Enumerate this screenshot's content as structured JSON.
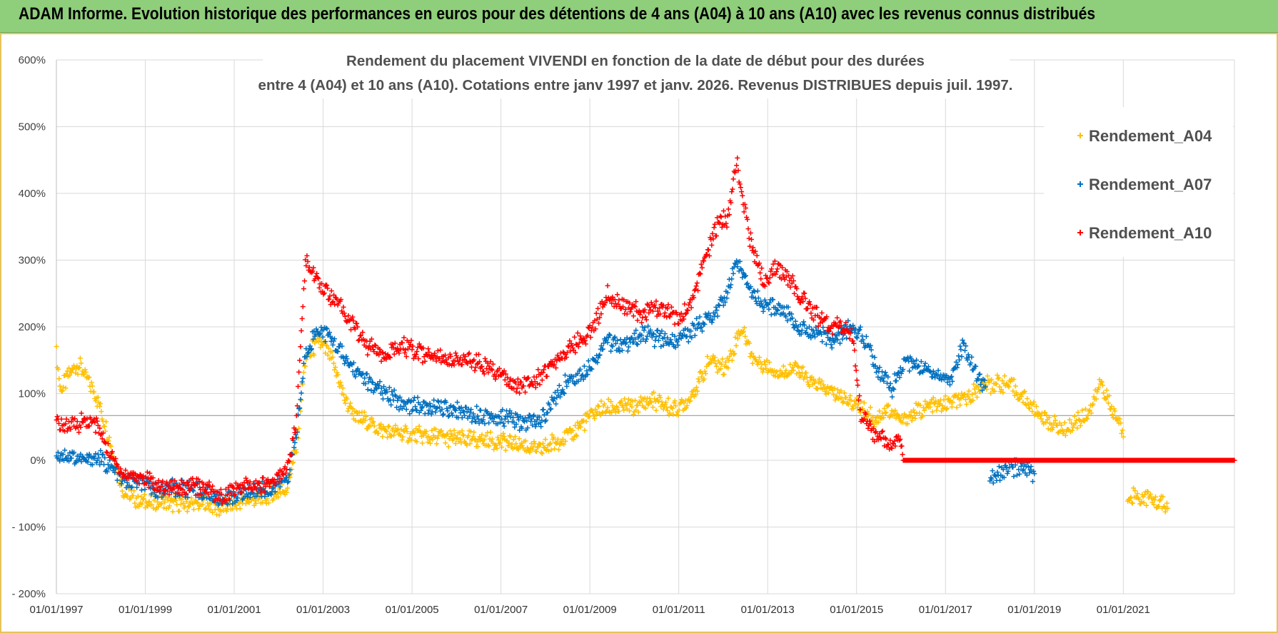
{
  "banner": {
    "title": "ADAM Informe. Evolution historique des performances en euros pour des détentions de 4 ans (A04) à 10 ans (A10) avec les revenus connus distribués"
  },
  "chart_data": {
    "type": "scatter",
    "title_line1": "Rendement du placement VIVENDI en fonction de la date de début pour des durées",
    "title_line2": "entre 4 (A04) et 10 ans (A10).  Cotations entre janv 1997 et janv. 2026. Revenus DISTRIBUES depuis juil. 1997.",
    "xlabel": "",
    "ylabel": "",
    "y_ticks": [
      "600%",
      "500%",
      "400%",
      "300%",
      "200%",
      "100%",
      "0%",
      "- 100%",
      "- 200%"
    ],
    "ylim": [
      -200,
      600
    ],
    "y_reference_line": 67,
    "x_ticks": [
      "01/01/1997",
      "01/01/1999",
      "01/01/2001",
      "01/01/2003",
      "01/01/2005",
      "01/01/2007",
      "01/01/2009",
      "01/01/2011",
      "01/01/2013",
      "01/01/2015",
      "01/01/2017",
      "01/01/2019",
      "01/01/2021"
    ],
    "xlim": [
      1997.0,
      2023.5
    ],
    "grid": true,
    "legend_position": "top-right",
    "marker": "+",
    "series": [
      {
        "name": "Rendement_A04",
        "color": "#ffc000",
        "points": [
          [
            1997.0,
            160
          ],
          [
            1997.1,
            105
          ],
          [
            1997.3,
            130
          ],
          [
            1997.5,
            145
          ],
          [
            1997.7,
            120
          ],
          [
            1997.9,
            95
          ],
          [
            1998.1,
            55
          ],
          [
            1998.3,
            0
          ],
          [
            1998.5,
            -45
          ],
          [
            1998.8,
            -60
          ],
          [
            1999.2,
            -63
          ],
          [
            1999.6,
            -65
          ],
          [
            2000.0,
            -66
          ],
          [
            2000.4,
            -65
          ],
          [
            2000.7,
            -73
          ],
          [
            2001.0,
            -66
          ],
          [
            2001.3,
            -60
          ],
          [
            2001.6,
            -57
          ],
          [
            2001.9,
            -50
          ],
          [
            2002.2,
            -40
          ],
          [
            2002.4,
            20
          ],
          [
            2002.6,
            150
          ],
          [
            2002.9,
            180
          ],
          [
            2003.2,
            150
          ],
          [
            2003.5,
            90
          ],
          [
            2003.8,
            60
          ],
          [
            2004.0,
            60
          ],
          [
            2004.3,
            45
          ],
          [
            2004.7,
            40
          ],
          [
            2005.0,
            38
          ],
          [
            2005.5,
            35
          ],
          [
            2006.0,
            33
          ],
          [
            2006.5,
            30
          ],
          [
            2007.0,
            28
          ],
          [
            2007.5,
            22
          ],
          [
            2007.8,
            15
          ],
          [
            2008.0,
            20
          ],
          [
            2008.3,
            30
          ],
          [
            2008.6,
            40
          ],
          [
            2008.9,
            60
          ],
          [
            2009.2,
            75
          ],
          [
            2009.6,
            80
          ],
          [
            2010.0,
            80
          ],
          [
            2010.4,
            90
          ],
          [
            2010.8,
            80
          ],
          [
            2011.1,
            80
          ],
          [
            2011.4,
            110
          ],
          [
            2011.7,
            150
          ],
          [
            2012.0,
            140
          ],
          [
            2012.2,
            160
          ],
          [
            2012.4,
            200
          ],
          [
            2012.7,
            150
          ],
          [
            2013.0,
            140
          ],
          [
            2013.3,
            130
          ],
          [
            2013.6,
            140
          ],
          [
            2013.9,
            120
          ],
          [
            2014.2,
            110
          ],
          [
            2014.5,
            100
          ],
          [
            2014.8,
            90
          ],
          [
            2015.1,
            80
          ],
          [
            2015.4,
            60
          ],
          [
            2015.7,
            75
          ],
          [
            2016.0,
            60
          ],
          [
            2016.3,
            70
          ],
          [
            2016.6,
            80
          ],
          [
            2017.0,
            85
          ],
          [
            2017.4,
            90
          ],
          [
            2017.8,
            110
          ],
          [
            2018.2,
            115
          ],
          [
            2018.5,
            110
          ],
          [
            2018.8,
            90
          ],
          [
            2019.1,
            70
          ],
          [
            2019.4,
            55
          ],
          [
            2019.7,
            45
          ],
          [
            2020.0,
            60
          ],
          [
            2020.3,
            80
          ],
          [
            2020.5,
            120
          ],
          [
            2020.7,
            80
          ],
          [
            2020.9,
            60
          ],
          [
            2021.0,
            35
          ],
          [
            2021.1,
            -52
          ],
          [
            2021.5,
            -55
          ],
          [
            2021.8,
            -65
          ],
          [
            2022.0,
            -72
          ]
        ]
      },
      {
        "name": "Rendement_A07",
        "color": "#0070c0",
        "points": [
          [
            1997.0,
            10
          ],
          [
            1997.3,
            5
          ],
          [
            1997.6,
            0
          ],
          [
            1997.9,
            5
          ],
          [
            1998.2,
            -10
          ],
          [
            1998.5,
            -30
          ],
          [
            1998.9,
            -35
          ],
          [
            1999.3,
            -45
          ],
          [
            1999.7,
            -42
          ],
          [
            2000.1,
            -45
          ],
          [
            2000.4,
            -50
          ],
          [
            2000.7,
            -60
          ],
          [
            2001.0,
            -52
          ],
          [
            2001.3,
            -48
          ],
          [
            2001.6,
            -45
          ],
          [
            2001.9,
            -40
          ],
          [
            2002.2,
            -25
          ],
          [
            2002.4,
            40
          ],
          [
            2002.6,
            160
          ],
          [
            2002.9,
            200
          ],
          [
            2003.2,
            180
          ],
          [
            2003.5,
            150
          ],
          [
            2003.8,
            130
          ],
          [
            2004.1,
            110
          ],
          [
            2004.4,
            100
          ],
          [
            2004.8,
            85
          ],
          [
            2005.2,
            80
          ],
          [
            2005.6,
            78
          ],
          [
            2006.0,
            75
          ],
          [
            2006.4,
            70
          ],
          [
            2006.8,
            65
          ],
          [
            2007.2,
            65
          ],
          [
            2007.6,
            55
          ],
          [
            2007.9,
            60
          ],
          [
            2008.2,
            90
          ],
          [
            2008.5,
            120
          ],
          [
            2008.8,
            130
          ],
          [
            2009.1,
            150
          ],
          [
            2009.4,
            180
          ],
          [
            2009.8,
            170
          ],
          [
            2010.2,
            190
          ],
          [
            2010.6,
            180
          ],
          [
            2011.0,
            180
          ],
          [
            2011.4,
            200
          ],
          [
            2011.8,
            220
          ],
          [
            2012.1,
            250
          ],
          [
            2012.3,
            300
          ],
          [
            2012.6,
            260
          ],
          [
            2012.9,
            230
          ],
          [
            2013.3,
            230
          ],
          [
            2013.7,
            200
          ],
          [
            2014.1,
            190
          ],
          [
            2014.5,
            180
          ],
          [
            2014.9,
            200
          ],
          [
            2015.2,
            180
          ],
          [
            2015.5,
            130
          ],
          [
            2015.8,
            110
          ],
          [
            2016.1,
            150
          ],
          [
            2016.4,
            140
          ],
          [
            2016.8,
            130
          ],
          [
            2017.1,
            120
          ],
          [
            2017.4,
            170
          ],
          [
            2017.7,
            130
          ],
          [
            2017.9,
            110
          ],
          [
            2018.0,
            -25
          ],
          [
            2018.3,
            -15
          ],
          [
            2018.7,
            -10
          ],
          [
            2019.0,
            -20
          ]
        ]
      },
      {
        "name": "Rendement_A10",
        "color": "#ff0000",
        "points": [
          [
            1997.0,
            55
          ],
          [
            1997.3,
            50
          ],
          [
            1997.6,
            60
          ],
          [
            1997.9,
            55
          ],
          [
            1998.2,
            10
          ],
          [
            1998.5,
            -20
          ],
          [
            1998.9,
            -25
          ],
          [
            1999.3,
            -40
          ],
          [
            1999.7,
            -38
          ],
          [
            2000.1,
            -40
          ],
          [
            2000.4,
            -42
          ],
          [
            2000.7,
            -55
          ],
          [
            2001.0,
            -45
          ],
          [
            2001.3,
            -40
          ],
          [
            2001.6,
            -38
          ],
          [
            2001.9,
            -30
          ],
          [
            2002.2,
            -10
          ],
          [
            2002.4,
            60
          ],
          [
            2002.6,
            300
          ],
          [
            2002.8,
            280
          ],
          [
            2003.1,
            250
          ],
          [
            2003.4,
            230
          ],
          [
            2003.7,
            200
          ],
          [
            2004.0,
            170
          ],
          [
            2004.4,
            160
          ],
          [
            2004.8,
            170
          ],
          [
            2005.2,
            160
          ],
          [
            2005.6,
            155
          ],
          [
            2006.0,
            150
          ],
          [
            2006.5,
            145
          ],
          [
            2007.0,
            130
          ],
          [
            2007.4,
            110
          ],
          [
            2007.8,
            120
          ],
          [
            2008.2,
            150
          ],
          [
            2008.6,
            170
          ],
          [
            2009.0,
            190
          ],
          [
            2009.4,
            250
          ],
          [
            2009.8,
            230
          ],
          [
            2010.2,
            220
          ],
          [
            2010.6,
            230
          ],
          [
            2011.0,
            210
          ],
          [
            2011.3,
            240
          ],
          [
            2011.6,
            300
          ],
          [
            2011.9,
            360
          ],
          [
            2012.1,
            360
          ],
          [
            2012.3,
            450
          ],
          [
            2012.6,
            330
          ],
          [
            2012.9,
            270
          ],
          [
            2013.2,
            290
          ],
          [
            2013.6,
            260
          ],
          [
            2013.9,
            230
          ],
          [
            2014.2,
            210
          ],
          [
            2014.6,
            200
          ],
          [
            2014.9,
            190
          ],
          [
            2015.1,
            70
          ],
          [
            2015.4,
            40
          ],
          [
            2015.7,
            25
          ],
          [
            2016.0,
            30
          ],
          [
            2016.05,
            0
          ],
          [
            2023.5,
            0
          ]
        ]
      }
    ]
  }
}
